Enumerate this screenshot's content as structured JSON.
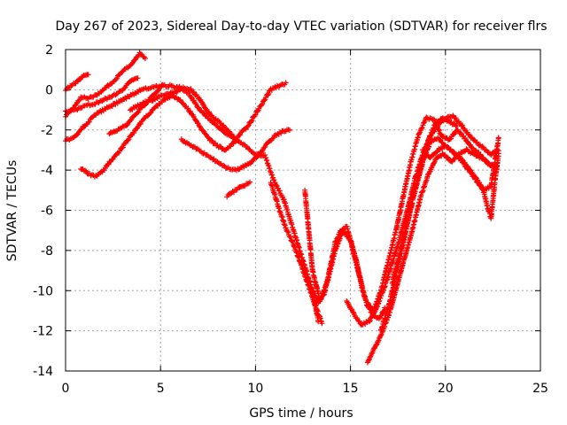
{
  "chart_data": {
    "type": "scatter",
    "title": "Day 267 of 2023, Sidereal Day-to-day VTEC variation (SDTVAR) for receiver flrs",
    "xlabel": "GPS time / hours",
    "ylabel": "SDTVAR / TECUs",
    "xlim": [
      0,
      25
    ],
    "ylim": [
      -14,
      2
    ],
    "xticks": [
      "0",
      "5",
      "10",
      "15",
      "20",
      "25"
    ],
    "yticks": [
      "2",
      "0",
      "-2",
      "-4",
      "-6",
      "-8",
      "-10",
      "-12",
      "-14"
    ],
    "grid": true,
    "legend": "none",
    "marker": "+",
    "color": "#ff0000",
    "series": [
      {
        "x": [
          0.0,
          0.3,
          0.6,
          0.9,
          1.2
        ],
        "y": [
          0.0,
          0.2,
          0.4,
          0.7,
          0.8
        ]
      },
      {
        "x": [
          0.0,
          0.4,
          0.8,
          1.2,
          1.6,
          2.0,
          2.5,
          3.0,
          3.5,
          3.9,
          4.2
        ],
        "y": [
          -1.3,
          -0.9,
          -0.4,
          -0.4,
          -0.3,
          0.0,
          0.4,
          0.9,
          1.3,
          1.8,
          1.6
        ]
      },
      {
        "x": [
          0.0,
          0.5,
          1.0,
          1.5,
          2.0,
          2.5,
          3.0,
          3.5,
          3.8
        ],
        "y": [
          -1.1,
          -1.0,
          -0.8,
          -0.7,
          -0.5,
          -0.3,
          0.0,
          0.5,
          0.6
        ]
      },
      {
        "x": [
          0.0,
          0.4,
          0.8,
          1.2,
          1.6,
          2.0,
          2.4,
          2.8,
          3.2,
          3.6,
          4.0,
          4.5,
          5.0,
          5.5,
          6.0,
          6.5,
          7.0,
          7.5,
          8.0,
          8.5,
          9.0,
          9.5,
          10.0,
          10.5,
          11.0,
          11.5,
          12.0,
          12.5,
          13.0,
          13.3
        ],
        "y": [
          -2.5,
          -2.4,
          -2.0,
          -1.6,
          -1.2,
          -1.0,
          -0.8,
          -0.6,
          -0.4,
          -0.2,
          0.0,
          0.1,
          0.2,
          0.2,
          0.1,
          -0.2,
          -0.9,
          -1.4,
          -1.8,
          -2.2,
          -2.5,
          -2.8,
          -3.2,
          -3.3,
          -4.6,
          -5.5,
          -7.0,
          -8.5,
          -10.0,
          -11.5
        ]
      },
      {
        "x": [
          3.4,
          3.8,
          4.2,
          4.6,
          5.0,
          5.4,
          5.8,
          6.2,
          6.6,
          7.0,
          7.4,
          7.8,
          8.2,
          8.6,
          9.0
        ],
        "y": [
          -1.0,
          -0.8,
          -0.6,
          -0.5,
          -0.3,
          -0.2,
          -0.1,
          0.1,
          0.0,
          -0.4,
          -1.0,
          -1.4,
          -1.7,
          -2.1,
          -2.5
        ]
      },
      {
        "x": [
          0.8,
          1.2,
          1.6,
          2.0,
          2.4,
          2.8,
          3.2,
          3.6,
          4.0,
          4.4,
          4.8,
          5.2,
          5.6,
          6.0,
          6.4,
          6.8,
          7.2,
          7.6,
          8.0,
          8.4,
          8.8,
          9.2,
          9.6,
          10.0,
          10.4,
          10.8,
          11.2,
          11.6
        ],
        "y": [
          -3.9,
          -4.2,
          -4.3,
          -4.0,
          -3.5,
          -3.1,
          -2.6,
          -2.1,
          -1.6,
          -1.2,
          -0.8,
          -0.5,
          -0.3,
          -0.5,
          -0.9,
          -1.4,
          -2.0,
          -2.5,
          -2.8,
          -3.0,
          -2.7,
          -2.2,
          -1.8,
          -1.2,
          -0.6,
          0.0,
          0.2,
          0.3
        ]
      },
      {
        "x": [
          2.3,
          2.6,
          2.9,
          3.2,
          3.5,
          3.9,
          4.3,
          4.7,
          5.1
        ],
        "y": [
          -2.2,
          -2.1,
          -1.9,
          -1.8,
          -1.4,
          -1.0,
          -0.6,
          -0.2,
          0.2
        ]
      },
      {
        "x": [
          6.1,
          6.5,
          7.0,
          7.5,
          8.0,
          8.5,
          9.0,
          9.4,
          9.8,
          10.2,
          10.6,
          11.0,
          11.4,
          11.8
        ],
        "y": [
          -2.5,
          -2.7,
          -3.0,
          -3.3,
          -3.6,
          -3.9,
          -4.0,
          -3.8,
          -3.6,
          -3.2,
          -2.7,
          -2.3,
          -2.1,
          -2.0
        ]
      },
      {
        "x": [
          8.5,
          8.8,
          9.1,
          9.4,
          9.7
        ],
        "y": [
          -5.3,
          -5.1,
          -4.9,
          -4.8,
          -4.6
        ]
      },
      {
        "x": [
          10.8,
          11.2,
          11.6,
          12.0,
          12.4,
          12.8,
          13.2,
          13.5
        ],
        "y": [
          -4.6,
          -5.8,
          -6.9,
          -7.7,
          -8.7,
          -9.8,
          -10.9,
          -11.6
        ]
      },
      {
        "x": [
          12.6,
          13.0,
          13.4,
          13.8,
          14.2,
          14.6,
          15.0,
          15.4,
          15.8,
          16.2,
          16.6,
          17.0,
          17.4,
          17.8,
          18.2,
          18.6,
          19.0,
          19.4,
          19.8,
          20.2,
          20.6,
          21.0,
          21.4,
          21.8,
          22.2,
          22.6
        ],
        "y": [
          -5.0,
          -9.0,
          -10.5,
          -9.5,
          -8.0,
          -7.0,
          -7.5,
          -9.0,
          -10.5,
          -11.0,
          -10.0,
          -8.5,
          -7.0,
          -5.2,
          -3.5,
          -2.2,
          -1.4,
          -1.5,
          -2.3,
          -2.5,
          -2.0,
          -2.4,
          -2.9,
          -3.2,
          -3.6,
          -3.9
        ]
      },
      {
        "x": [
          13.0,
          13.3,
          13.6,
          13.9,
          14.2,
          14.5,
          14.8,
          15.1,
          15.3,
          15.6,
          15.9,
          16.2,
          16.5,
          16.8
        ],
        "y": [
          -10.0,
          -10.6,
          -10.2,
          -9.0,
          -7.6,
          -7.0,
          -6.8,
          -7.8,
          -8.5,
          -9.8,
          -10.8,
          -11.2,
          -11.4,
          -10.9
        ]
      },
      {
        "x": [
          14.8,
          15.2,
          15.6,
          16.0,
          16.4,
          16.8,
          17.2,
          17.6,
          18.0,
          18.4,
          18.8,
          19.2,
          19.6,
          20.0,
          20.4,
          20.8,
          21.2,
          21.6,
          22.0,
          22.4,
          22.8
        ],
        "y": [
          -10.5,
          -11.2,
          -11.7,
          -11.5,
          -10.8,
          -9.8,
          -8.6,
          -7.4,
          -6.0,
          -4.4,
          -3.2,
          -2.3,
          -1.8,
          -1.4,
          -1.3,
          -1.7,
          -2.2,
          -2.6,
          -2.9,
          -3.2,
          -3.0
        ]
      },
      {
        "x": [
          15.9,
          16.3,
          16.7,
          17.1,
          17.5,
          17.9,
          18.3,
          18.7,
          19.1,
          19.5,
          19.9,
          20.3,
          20.7,
          21.1,
          21.5,
          21.9,
          22.3,
          22.7
        ],
        "y": [
          -13.6,
          -12.8,
          -12.0,
          -11.0,
          -9.6,
          -8.2,
          -6.8,
          -5.3,
          -4.2,
          -3.4,
          -3.2,
          -3.6,
          -3.2,
          -3.0,
          -3.2,
          -3.4,
          -3.7,
          -3.9
        ]
      },
      {
        "x": [
          16.6,
          17.0,
          17.4,
          17.8,
          18.2,
          18.6,
          19.0,
          19.4,
          19.8,
          20.2,
          20.6
        ],
        "y": [
          -12.0,
          -10.8,
          -9.2,
          -7.5,
          -5.8,
          -4.2,
          -2.8,
          -1.8,
          -1.4,
          -1.6,
          -1.8
        ]
      },
      {
        "x": [
          17.2,
          17.6,
          18.0,
          18.4,
          18.8,
          19.2,
          19.6,
          20.0,
          20.4,
          20.8,
          21.2,
          21.6,
          22.0,
          22.4,
          22.8
        ],
        "y": [
          -9.6,
          -8.2,
          -6.6,
          -5.0,
          -3.6,
          -2.6,
          -2.4,
          -2.8,
          -3.1,
          -3.5,
          -4.0,
          -4.5,
          -5.0,
          -4.8,
          -2.4
        ]
      },
      {
        "x": [
          18.8,
          19.2,
          19.6,
          20.0,
          20.4,
          20.8,
          21.2,
          21.6,
          22.0,
          22.2,
          22.4,
          22.6,
          22.8
        ],
        "y": [
          -3.0,
          -3.4,
          -3.0,
          -2.8,
          -3.1,
          -3.4,
          -3.9,
          -4.4,
          -5.0,
          -5.8,
          -6.4,
          -4.6,
          -3.2
        ]
      }
    ]
  }
}
